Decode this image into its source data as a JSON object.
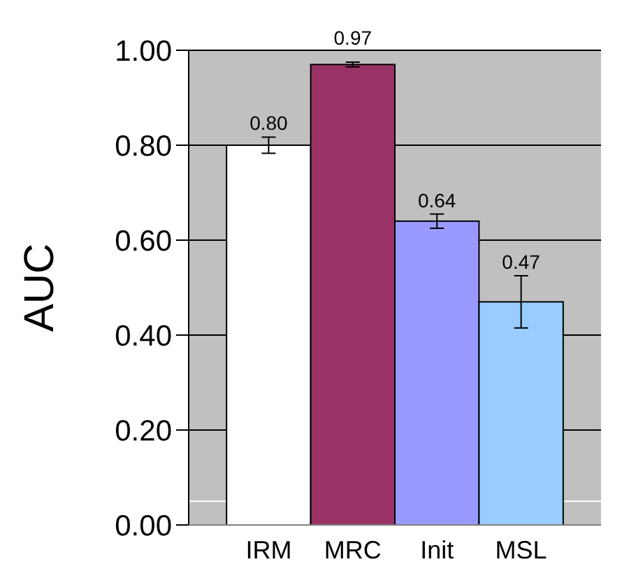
{
  "chart_data": {
    "type": "bar",
    "ylabel": "AUC",
    "categories": [
      "IRM",
      "MRC",
      "Init",
      "MSL"
    ],
    "values": [
      0.8,
      0.97,
      0.64,
      0.47
    ],
    "value_labels": [
      "0.80",
      "0.97",
      "0.64",
      "0.47"
    ],
    "colors": [
      "#ffffff",
      "#993366",
      "#9999ff",
      "#99ccff"
    ],
    "errors": [
      0.017,
      0.005,
      0.015,
      0.055
    ],
    "ylim": [
      0,
      1
    ],
    "yticks": [
      {
        "value": 0,
        "label": "0.00"
      },
      {
        "value": 0.2,
        "label": "0.20"
      },
      {
        "value": 0.4,
        "label": "0.40"
      },
      {
        "value": 0.6,
        "label": "0.60"
      },
      {
        "value": 0.8,
        "label": "0.80"
      },
      {
        "value": 1,
        "label": "1.00"
      }
    ],
    "grid": "y",
    "ref_lines": [
      {
        "axis": "y",
        "value": 0.05,
        "color": "#ffffff"
      }
    ]
  }
}
